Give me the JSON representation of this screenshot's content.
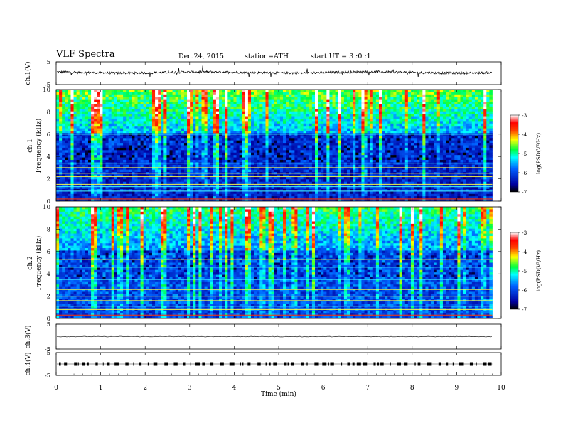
{
  "header": {
    "title": "VLF  Spectra",
    "date": "Dec.24, 2015",
    "station": "station=ATH",
    "start": "start  UT  =   3  :0  :1"
  },
  "chart_data": [
    {
      "type": "line",
      "panel": "ch1-waveform",
      "ylabel": "ch.1(V)",
      "ylim": [
        -5,
        5
      ],
      "yticks": [
        "5",
        "-5"
      ],
      "xlim": [
        0,
        10
      ],
      "trace_color": "#000000",
      "mean_level": 0.0,
      "x_end_min": 9.8
    },
    {
      "type": "heatmap",
      "panel": "ch1-spectrogram",
      "ylabel": "ch.1\nFrequency (kHz)",
      "ylim": [
        0,
        10
      ],
      "yticks": [
        "0",
        "2",
        "4",
        "6",
        "8",
        "10"
      ],
      "xlim": [
        0,
        10
      ],
      "x_end_min": 9.8,
      "colorbar": {
        "label": "log(PSD(V²/Hz)",
        "range": [
          -7,
          -3
        ],
        "ticks": [
          "-3",
          "-4",
          "-5",
          "-6",
          "-7"
        ]
      }
    },
    {
      "type": "heatmap",
      "panel": "ch2-spectrogram",
      "ylabel": "ch.2\nFrequency (kHz)",
      "ylim": [
        0,
        10
      ],
      "yticks": [
        "0",
        "2",
        "4",
        "6",
        "8",
        "10"
      ],
      "xlim": [
        0,
        10
      ],
      "x_end_min": 9.8,
      "colorbar": {
        "label": "log(PSD(V²/Hz)",
        "range": [
          -7,
          -3
        ],
        "ticks": [
          "-3",
          "-4",
          "-5",
          "-6",
          "-7"
        ]
      }
    },
    {
      "type": "line",
      "panel": "ch3-waveform",
      "ylabel": "ch.3(V)",
      "ylim": [
        -5,
        5
      ],
      "yticks": [
        "5",
        "-5"
      ],
      "xlim": [
        0,
        10
      ],
      "mean_level": 0.0
    },
    {
      "type": "line",
      "panel": "ch4-waveform",
      "ylabel": "ch.4(V)",
      "ylim": [
        -5,
        5
      ],
      "yticks": [
        "5",
        "-5"
      ],
      "xlim": [
        0,
        10
      ],
      "mean_level": 0.0,
      "xlabel": "Time  (min)",
      "xticks": [
        "0",
        "1",
        "2",
        "3",
        "4",
        "5",
        "6",
        "7",
        "8",
        "9",
        "10"
      ]
    }
  ]
}
